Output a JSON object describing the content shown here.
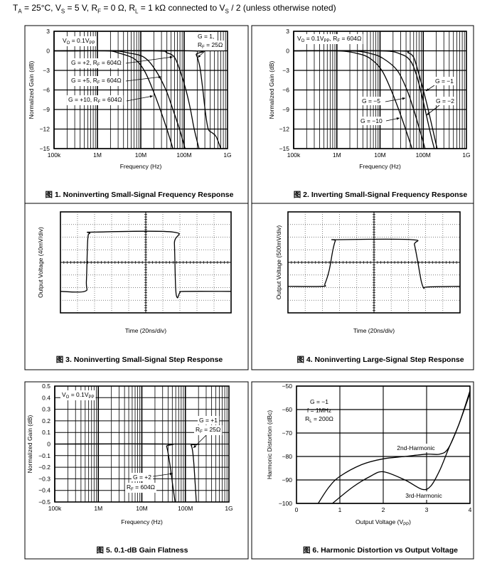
{
  "header": {
    "conditions": "T_{A} = 25°C, V_{S} = 5 V, R_{F} = 0 Ω, R_{L} = 1 kΩ connected to V_{S} / 2 (unless otherwise noted)"
  },
  "chart_data": [
    {
      "type": "line",
      "title": "图 1. Noninverting Small-Signal Frequency Response",
      "xscale": "log",
      "xlim": [
        100000,
        1000000000
      ],
      "ylim": [
        -15,
        3
      ],
      "xticks": [
        100000,
        1000000,
        10000000,
        100000000,
        1000000000
      ],
      "xtick_labels": [
        "100k",
        "1M",
        "10M",
        "100M",
        "1G"
      ],
      "yticks": [
        3,
        0,
        -3,
        -6,
        -9,
        -12,
        -15
      ],
      "ytick_labels": [
        "3",
        "0",
        "−3",
        "−6",
        "−9",
        "−12",
        "−15"
      ],
      "xlabel": "Frequency (Hz)",
      "ylabel": "Normalized Gain (dB)",
      "grid": true,
      "series": [
        {
          "name": "G = 1, RF = 25Ω",
          "points": [
            [
              100000,
              0
            ],
            [
              150000000,
              0
            ],
            [
              190000000,
              -0.6
            ],
            [
              230000000,
              -2.5
            ],
            [
              270000000,
              -6
            ],
            [
              310000000,
              -9.5
            ],
            [
              360000000,
              -12
            ],
            [
              450000000,
              -12.6
            ],
            [
              550000000,
              -13.2
            ],
            [
              700000000,
              -15
            ]
          ]
        },
        {
          "name": "G = +2, RF = 604Ω",
          "points": [
            [
              100000,
              0
            ],
            [
              20000000,
              0
            ],
            [
              40000000,
              -0.3
            ],
            [
              60000000,
              -1
            ],
            [
              80000000,
              -3
            ],
            [
              110000000,
              -6
            ],
            [
              140000000,
              -9
            ],
            [
              170000000,
              -12
            ],
            [
              220000000,
              -15
            ]
          ]
        },
        {
          "name": "G = +5, RF = 604Ω",
          "points": [
            [
              100000,
              0
            ],
            [
              2000000,
              0
            ],
            [
              5000000,
              -0.3
            ],
            [
              12000000,
              -1
            ],
            [
              22000000,
              -3
            ],
            [
              38000000,
              -6
            ],
            [
              55000000,
              -9
            ],
            [
              78000000,
              -12
            ],
            [
              105000000,
              -15
            ]
          ]
        },
        {
          "name": "G = +10, RF = 604Ω",
          "points": [
            [
              100000,
              0
            ],
            [
              1500000,
              0
            ],
            [
              3000000,
              -0.3
            ],
            [
              7000000,
              -1.2
            ],
            [
              12000000,
              -3
            ],
            [
              19000000,
              -6
            ],
            [
              28000000,
              -9
            ],
            [
              40000000,
              -12
            ],
            [
              55000000,
              -15
            ]
          ]
        }
      ],
      "annotations": [
        "V_{O} = 0.1V_{PP}",
        "G = 1,",
        "R_{F} = 25Ω",
        "G = +2, R_{F} = 604Ω",
        "G = +5, R_{F} = 604Ω",
        "G = +10, R_{F} = 604Ω"
      ]
    },
    {
      "type": "line",
      "title": "图 2. Inverting Small-Signal Frequency Response",
      "xscale": "log",
      "xlim": [
        100000,
        1000000000
      ],
      "ylim": [
        -15,
        3
      ],
      "xticks": [
        100000,
        1000000,
        10000000,
        100000000,
        1000000000
      ],
      "xtick_labels": [
        "100k",
        "1M",
        "10M",
        "100M",
        "1G"
      ],
      "yticks": [
        3,
        0,
        -3,
        -6,
        -9,
        -12,
        -15
      ],
      "ytick_labels": [
        "3",
        "0",
        "−3",
        "−6",
        "−9",
        "−12",
        "−15"
      ],
      "xlabel": "Frequency (Hz)",
      "ylabel": "Normalized Gain (dB)",
      "grid": true,
      "series": [
        {
          "name": "G = −1",
          "points": [
            [
              100000,
              0
            ],
            [
              25000000,
              0
            ],
            [
              45000000,
              -0.3
            ],
            [
              60000000,
              -1
            ],
            [
              75000000,
              -3
            ],
            [
              100000000,
              -6
            ],
            [
              130000000,
              -9
            ],
            [
              165000000,
              -12
            ],
            [
              210000000,
              -15
            ]
          ]
        },
        {
          "name": "G = −2",
          "points": [
            [
              100000,
              0
            ],
            [
              10000000,
              0
            ],
            [
              30000000,
              -0.5
            ],
            [
              50000000,
              -1.5
            ],
            [
              68000000,
              -3.5
            ],
            [
              90000000,
              -6.5
            ],
            [
              115000000,
              -9.5
            ],
            [
              145000000,
              -12.5
            ],
            [
              180000000,
              -15
            ]
          ]
        },
        {
          "name": "G = −5",
          "points": [
            [
              100000,
              0
            ],
            [
              2000000,
              0
            ],
            [
              6000000,
              -0.4
            ],
            [
              12000000,
              -1.2
            ],
            [
              25000000,
              -3
            ],
            [
              42000000,
              -6
            ],
            [
              60000000,
              -9
            ],
            [
              82000000,
              -12
            ],
            [
              110000000,
              -15
            ]
          ]
        },
        {
          "name": "G = −10",
          "points": [
            [
              100000,
              0
            ],
            [
              1000000,
              0
            ],
            [
              3000000,
              -0.4
            ],
            [
              6000000,
              -1.2
            ],
            [
              11000000,
              -3
            ],
            [
              18000000,
              -6
            ],
            [
              27000000,
              -9
            ],
            [
              39000000,
              -12
            ],
            [
              55000000,
              -15
            ]
          ]
        }
      ],
      "annotations": [
        "V_{O} = 0.1V_{PP}, R_{F} = 604Ω",
        "G = −1",
        "G = −2",
        "G = −5",
        "G = −10"
      ]
    },
    {
      "type": "line",
      "title": "图 3. Noninverting Small-Signal Step Response",
      "xscale": "scope",
      "xlim": [
        0,
        10
      ],
      "ylim": [
        -4,
        4
      ],
      "xlabel": "Time (20ns/div)",
      "ylabel": "Output Voltage (40mV/div)",
      "grid": true,
      "series": [
        {
          "name": "output",
          "points": [
            [
              0,
              -2.3
            ],
            [
              1.42,
              -2.3
            ],
            [
              1.52,
              -1.5
            ],
            [
              1.6,
              1.8
            ],
            [
              1.72,
              2.3
            ],
            [
              2.0,
              2.4
            ],
            [
              6.6,
              2.4
            ],
            [
              6.68,
              1.5
            ],
            [
              6.75,
              -2.0
            ],
            [
              6.85,
              -2.8
            ],
            [
              7.0,
              -2.4
            ],
            [
              7.3,
              -2.3
            ],
            [
              10,
              -2.3
            ]
          ]
        }
      ],
      "annotations": []
    },
    {
      "type": "line",
      "title": "图 4. Noninverting Large-Signal Step Response",
      "xscale": "scope",
      "xlim": [
        0,
        10
      ],
      "ylim": [
        -4,
        4
      ],
      "xlabel": "Time (20ns/div)",
      "ylabel": "Output Voltage (500mV/div)",
      "grid": true,
      "series": [
        {
          "name": "output",
          "points": [
            [
              0,
              -1.9
            ],
            [
              2.0,
              -1.9
            ],
            [
              2.15,
              -1.7
            ],
            [
              2.4,
              -0.6
            ],
            [
              2.6,
              0.9
            ],
            [
              2.75,
              1.7
            ],
            [
              2.9,
              1.8
            ],
            [
              7.2,
              1.8
            ],
            [
              7.35,
              1.4
            ],
            [
              7.55,
              0
            ],
            [
              7.75,
              -1.5
            ],
            [
              7.9,
              -2.05
            ],
            [
              8.1,
              -1.95
            ],
            [
              10,
              -1.9
            ]
          ]
        }
      ],
      "annotations": []
    },
    {
      "type": "line",
      "title": "图 5. 0.1-dB Gain Flatness",
      "xscale": "log",
      "xlim": [
        100000,
        1000000000
      ],
      "ylim": [
        -0.5,
        0.5
      ],
      "xticks": [
        100000,
        1000000,
        10000000,
        100000000,
        1000000000
      ],
      "xtick_labels": [
        "100k",
        "1M",
        "10M",
        "100M",
        "1G"
      ],
      "yticks": [
        0.5,
        0.4,
        0.3,
        0.2,
        0.1,
        0,
        -0.1,
        -0.2,
        -0.3,
        -0.4,
        -0.5
      ],
      "ytick_labels": [
        "0.5",
        "0.4",
        "0.3",
        "0.2",
        "0.1",
        "0",
        "−0.1",
        "−0.2",
        "−0.3",
        "−0.4",
        "−0.5"
      ],
      "xlabel": "Frequency (Hz)",
      "ylabel": "Normalized Gain (dB)",
      "grid": true,
      "series": [
        {
          "name": "G = +2, RF = 604Ω",
          "points": [
            [
              100000,
              0
            ],
            [
              33000000,
              0
            ],
            [
              37000000,
              -0.02
            ],
            [
              41000000,
              -0.1
            ],
            [
              47000000,
              -0.25
            ],
            [
              53000000,
              -0.4
            ],
            [
              58000000,
              -0.5
            ]
          ]
        },
        {
          "name": "G = +1, RF = 25Ω",
          "points": [
            [
              100000,
              0
            ],
            [
              120000000,
              0
            ],
            [
              135000000,
              -0.01
            ],
            [
              145000000,
              -0.05
            ],
            [
              155000000,
              -0.15
            ],
            [
              168000000,
              -0.35
            ],
            [
              178000000,
              -0.5
            ]
          ]
        }
      ],
      "annotations": [
        "V_{O} = 0.1V_{PP}",
        "G = +1",
        "R_{F} = 25Ω",
        "G = +2",
        "R_{F} = 604Ω"
      ]
    },
    {
      "type": "line",
      "title": "图 6. Harmonic Distortion vs Output Voltage",
      "xscale": "linear",
      "xlim": [
        0,
        4
      ],
      "ylim": [
        -100,
        -50
      ],
      "xticks": [
        0,
        1,
        2,
        3,
        4
      ],
      "xtick_labels": [
        "0",
        "1",
        "2",
        "3",
        "4"
      ],
      "yticks": [
        -50,
        -60,
        -70,
        -80,
        -90,
        -100
      ],
      "ytick_labels": [
        "−50",
        "−60",
        "−70",
        "−80",
        "−90",
        "−100"
      ],
      "xlabel": "Output Voltage (V_{PP})",
      "ylabel": "Harmonic Distortion (dBc)",
      "grid": true,
      "series": [
        {
          "name": "2nd-Harmonic",
          "points": [
            [
              0.5,
              -100
            ],
            [
              0.75,
              -93
            ],
            [
              1,
              -88.5
            ],
            [
              1.5,
              -83.5
            ],
            [
              2,
              -81
            ],
            [
              2.5,
              -80
            ],
            [
              3,
              -79
            ],
            [
              3.3,
              -79
            ],
            [
              3.5,
              -76.5
            ],
            [
              3.75,
              -66
            ],
            [
              4,
              -52
            ]
          ]
        },
        {
          "name": "3rd-Harmonic",
          "points": [
            [
              0.83,
              -100
            ],
            [
              1.3,
              -93
            ],
            [
              1.7,
              -88.5
            ],
            [
              2,
              -86.5
            ],
            [
              2.5,
              -90
            ],
            [
              2.9,
              -94
            ],
            [
              3.1,
              -92.5
            ],
            [
              3.3,
              -86
            ],
            [
              3.5,
              -77
            ],
            [
              3.75,
              -66
            ],
            [
              4,
              -53
            ]
          ]
        }
      ],
      "annotations": [
        "G = −1",
        "f = 1MHz",
        "R_{L} = 200Ω",
        "2nd-Harmonic",
        "3rd-Harmonic"
      ]
    }
  ]
}
